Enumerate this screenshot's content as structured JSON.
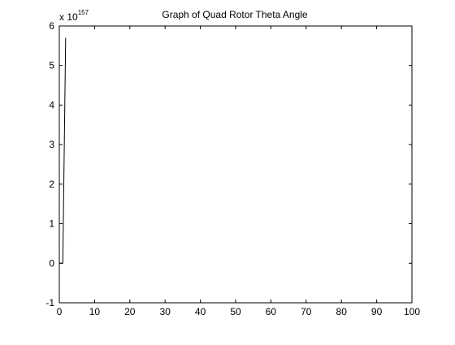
{
  "chart_data": {
    "type": "line",
    "title": "Graph of Quad Rotor Theta Angle",
    "xlabel": "",
    "ylabel": "",
    "exponent_base": "x 10",
    "exponent_power": "157",
    "xlim": [
      0,
      100
    ],
    "ylim": [
      -1,
      6
    ],
    "x_ticks": [
      "0",
      "10",
      "20",
      "30",
      "40",
      "50",
      "60",
      "70",
      "80",
      "90",
      "100"
    ],
    "y_ticks": [
      "-1",
      "0",
      "1",
      "2",
      "3",
      "4",
      "5",
      "6"
    ],
    "grid": false,
    "series": [
      {
        "x": [
          0,
          1,
          1,
          1.8
        ],
        "y": [
          0,
          0,
          0,
          5.7
        ]
      }
    ],
    "line_color": "#000000",
    "axes_color": "#000000",
    "background_color": "#ffffff"
  }
}
